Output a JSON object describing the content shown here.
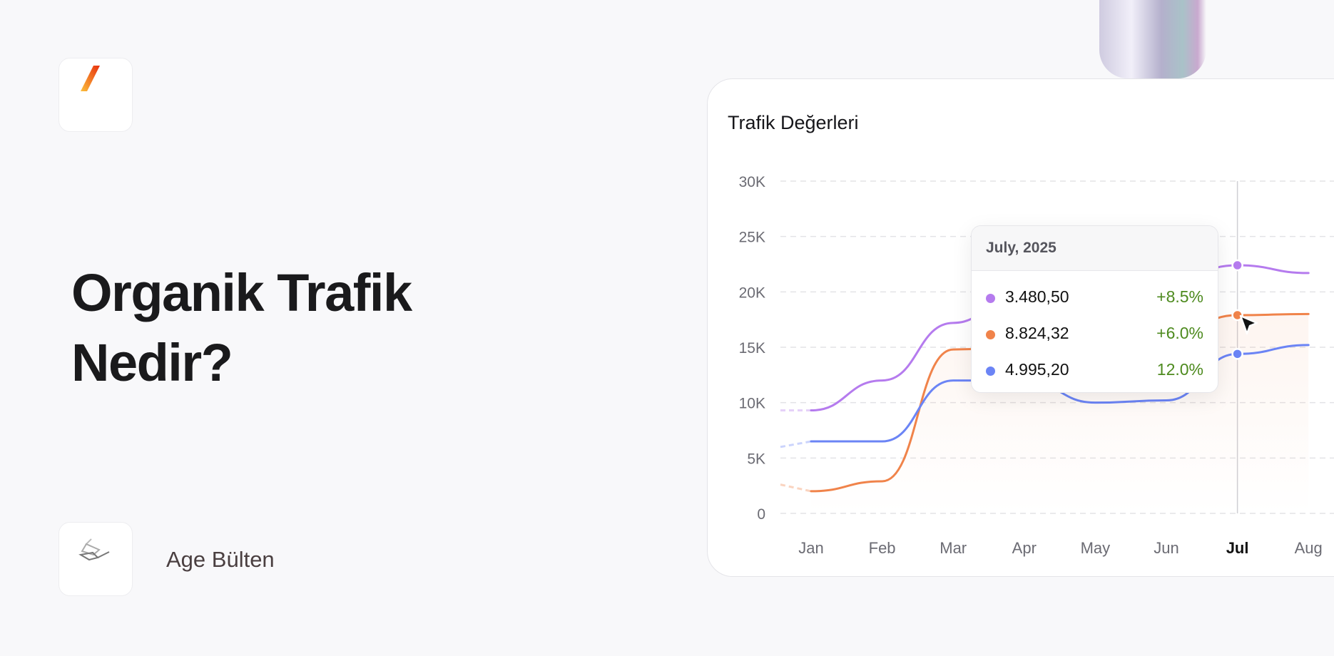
{
  "headline": {
    "line1": "Organik Trafik",
    "line2": "Nedir?"
  },
  "brand": {
    "name": "Age Bülten",
    "logo_icon": "slash-logo-icon",
    "brand_icon": "layered-diamond-icon"
  },
  "colors": {
    "purple": "#b57bee",
    "orange": "#f0834a",
    "blue": "#6b84f5",
    "positive": "#4d8a1e",
    "background": "#f8f8fa"
  },
  "chart_data": {
    "type": "line",
    "title": "Trafik Değerleri",
    "categories": [
      "Jan",
      "Feb",
      "Mar",
      "Apr",
      "May",
      "Jun",
      "Jul",
      "Aug"
    ],
    "active_category": "Jul",
    "ylim": [
      0,
      30000
    ],
    "yticks": [
      "0",
      "5K",
      "10K",
      "15K",
      "20K",
      "25K",
      "30K"
    ],
    "ytick_values": [
      0,
      5000,
      10000,
      15000,
      20000,
      25000,
      30000
    ],
    "grid": true,
    "series": [
      {
        "color": "#b57bee",
        "values": [
          9300,
          12000,
          17200,
          20500,
          20500,
          21000,
          22400,
          21700
        ],
        "lead_in": 9300
      },
      {
        "color": "#f0834a",
        "values": [
          2000,
          2900,
          14800,
          15000,
          15200,
          16000,
          17900,
          18000
        ],
        "lead_in": 2600,
        "area_fill": true
      },
      {
        "color": "#6b84f5",
        "values": [
          6500,
          6500,
          12000,
          12000,
          10000,
          10200,
          14400,
          15200
        ],
        "lead_in": 6000
      }
    ]
  },
  "tooltip": {
    "title": "July, 2025",
    "rows": [
      {
        "value": "3.480,50",
        "change": "+8.5%",
        "color": "#b57bee"
      },
      {
        "value": "8.824,32",
        "change": "+6.0%",
        "color": "#f0834a"
      },
      {
        "value": "4.995,20",
        "change": "12.0%",
        "color": "#6b84f5"
      }
    ]
  }
}
